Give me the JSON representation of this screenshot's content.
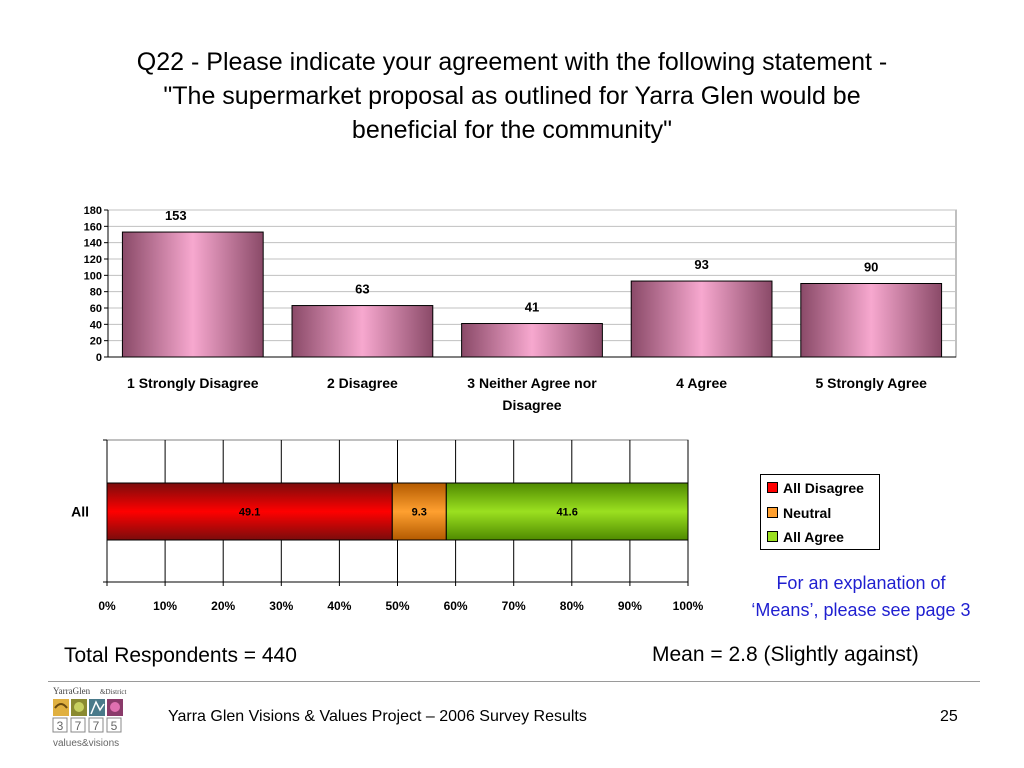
{
  "title": {
    "line1": "Q22 - Please indicate your agreement with the following statement -",
    "line2": "\"The supermarket proposal as outlined for Yarra Glen would be",
    "line3": "beneficial for the community\""
  },
  "chart_data": [
    {
      "type": "bar",
      "categories": [
        "1 Strongly Disagree",
        "2 Disagree",
        "3 Neither Agree nor Disagree",
        "4 Agree",
        "5 Strongly Agree"
      ],
      "values": [
        153,
        63,
        41,
        93,
        90
      ],
      "ylim": [
        0,
        180
      ],
      "yticks": [
        0,
        20,
        40,
        60,
        80,
        100,
        120,
        140,
        160,
        180
      ],
      "grid": true,
      "colors": {
        "bar_light": "#f7a8cf",
        "bar_dark": "#8a4a68",
        "grid": "#c0c0c0"
      }
    },
    {
      "type": "bar",
      "orientation": "horizontal-stacked",
      "categories": [
        "All"
      ],
      "series": [
        {
          "name": "All Disagree",
          "values": [
            49.1
          ],
          "color": "#ff0000",
          "color_dark": "#7a0c0c"
        },
        {
          "name": "Neutral",
          "values": [
            9.3
          ],
          "color": "#ffa030",
          "color_dark": "#b35a00"
        },
        {
          "name": "All Agree",
          "values": [
            41.6
          ],
          "color": "#9be020",
          "color_dark": "#4f8a00"
        }
      ],
      "xlim": [
        0,
        100
      ],
      "xticks": [
        "0%",
        "10%",
        "20%",
        "30%",
        "40%",
        "50%",
        "60%",
        "70%",
        "80%",
        "90%",
        "100%"
      ],
      "legend": "right",
      "grid": true
    }
  ],
  "annotations": {
    "respondents": "Total Respondents = 440",
    "mean": "Mean = 2.8 (Slightly against)",
    "note_line1": "For an explanation of",
    "note_line2": "‘Means’, please see page 3"
  },
  "footer": {
    "text": "Yarra Glen Visions & Values Project – 2006 Survey Results",
    "page": "25"
  },
  "logo": {
    "name": "YarraGlen",
    "suffix": "&District",
    "digits": [
      "3",
      "7",
      "7",
      "5"
    ],
    "tagline": "values&visions"
  }
}
